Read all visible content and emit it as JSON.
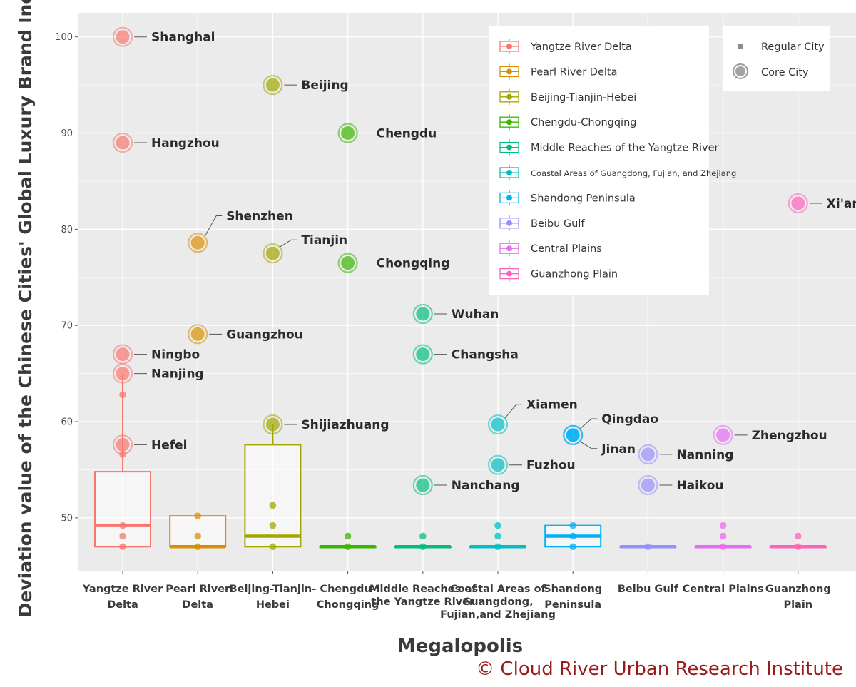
{
  "chart_data": {
    "type": "scatter",
    "chart_subtype": "box-plot with labeled city points",
    "xlabel": "Megalopolis",
    "ylabel": "Deviation value of the Chinese Cities' Global Luxury Brand Index",
    "ylim": [
      44.5,
      102.5
    ],
    "y_ticks": [
      50,
      60,
      70,
      80,
      90,
      100
    ],
    "grid": true,
    "credit": "© Cloud River Urban Research Institute",
    "categories": [
      {
        "label": [
          "Yangtze River",
          "Delta"
        ],
        "color": "#F8766D",
        "small": false
      },
      {
        "label": [
          "Pearl River",
          "Delta"
        ],
        "color": "#D89000",
        "small": false
      },
      {
        "label": [
          "Beijing-Tianjin-",
          "Hebei"
        ],
        "color": "#A3A500",
        "small": false
      },
      {
        "label": [
          "Chengdu-",
          "Chongqing"
        ],
        "color": "#39B600",
        "small": false
      },
      {
        "label": [
          "Middle Reaches of",
          "the Yangtze River"
        ],
        "color": "#00BF7D",
        "small": true
      },
      {
        "label": [
          "Coastal Areas of",
          "Guangdong,",
          "Fujian,and Zhejiang"
        ],
        "color": "#00BFC4",
        "small": true
      },
      {
        "label": [
          "Shandong",
          "Peninsula"
        ],
        "color": "#00B0F6",
        "small": false
      },
      {
        "label": [
          "Beibu Gulf"
        ],
        "color": "#9590FF",
        "small": false
      },
      {
        "label": [
          "Central Plains"
        ],
        "color": "#E76BF3",
        "small": false
      },
      {
        "label": [
          "Guanzhong",
          "Plain"
        ],
        "color": "#FF62BC",
        "small": false
      }
    ],
    "boxes": [
      {
        "q1": 47.0,
        "median": 49.2,
        "q3": 54.8,
        "whisker_low": 47.0,
        "whisker_high": 65.0
      },
      {
        "q1": 47.0,
        "median": 47.0,
        "q3": 50.2,
        "whisker_low": 47.0,
        "whisker_high": 50.2
      },
      {
        "q1": 47.0,
        "median": 48.1,
        "q3": 57.6,
        "whisker_low": 47.0,
        "whisker_high": 59.7
      },
      {
        "q1": 47.0,
        "median": 47.0,
        "q3": 47.0,
        "whisker_low": 47.0,
        "whisker_high": 47.0
      },
      {
        "q1": 47.0,
        "median": 47.0,
        "q3": 47.0,
        "whisker_low": 47.0,
        "whisker_high": 47.0
      },
      {
        "q1": 47.0,
        "median": 47.0,
        "q3": 47.0,
        "whisker_low": 47.0,
        "whisker_high": 47.0
      },
      {
        "q1": 47.0,
        "median": 48.1,
        "q3": 49.2,
        "whisker_low": 47.0,
        "whisker_high": 49.2
      },
      {
        "q1": 47.0,
        "median": 47.0,
        "q3": 47.0,
        "whisker_low": 47.0,
        "whisker_high": 47.0
      },
      {
        "q1": 47.0,
        "median": 47.0,
        "q3": 47.0,
        "whisker_low": 47.0,
        "whisker_high": 47.0
      },
      {
        "q1": 47.0,
        "median": 47.0,
        "q3": 47.0,
        "whisker_low": 47.0,
        "whisker_high": 47.0
      }
    ],
    "regular_cities": [
      {
        "group": 0,
        "y": 62.8
      },
      {
        "group": 0,
        "y": 56.6
      },
      {
        "group": 0,
        "y": 49.2
      },
      {
        "group": 0,
        "y": 48.1
      },
      {
        "group": 0,
        "y": 47.0
      },
      {
        "group": 1,
        "y": 50.2
      },
      {
        "group": 1,
        "y": 48.1
      },
      {
        "group": 1,
        "y": 47.0
      },
      {
        "group": 2,
        "y": 51.3
      },
      {
        "group": 2,
        "y": 49.2
      },
      {
        "group": 2,
        "y": 47.0
      },
      {
        "group": 3,
        "y": 48.1
      },
      {
        "group": 3,
        "y": 47.0
      },
      {
        "group": 4,
        "y": 48.1
      },
      {
        "group": 4,
        "y": 47.0
      },
      {
        "group": 5,
        "y": 49.2
      },
      {
        "group": 5,
        "y": 48.1
      },
      {
        "group": 5,
        "y": 47.0
      },
      {
        "group": 6,
        "y": 49.2
      },
      {
        "group": 6,
        "y": 48.1
      },
      {
        "group": 6,
        "y": 47.0
      },
      {
        "group": 7,
        "y": 47.0
      },
      {
        "group": 8,
        "y": 49.2
      },
      {
        "group": 8,
        "y": 48.1
      },
      {
        "group": 8,
        "y": 47.0
      },
      {
        "group": 9,
        "y": 48.1
      },
      {
        "group": 9,
        "y": 47.0
      }
    ],
    "core_cities": [
      {
        "group": 0,
        "name": "Shanghai",
        "y": 100.0,
        "label_y": 100.0
      },
      {
        "group": 0,
        "name": "Hangzhou",
        "y": 89.0,
        "label_y": 89.0
      },
      {
        "group": 0,
        "name": "Ningbo",
        "y": 67.0,
        "label_y": 67.0
      },
      {
        "group": 0,
        "name": "Nanjing",
        "y": 65.0,
        "label_y": 65.0
      },
      {
        "group": 0,
        "name": "Hefei",
        "y": 57.6,
        "label_y": 57.6
      },
      {
        "group": 1,
        "name": "Shenzhen",
        "y": 78.6,
        "label_y": 81.4
      },
      {
        "group": 1,
        "name": "Guangzhou",
        "y": 69.1,
        "label_y": 69.1
      },
      {
        "group": 2,
        "name": "Beijing",
        "y": 95.0,
        "label_y": 95.0
      },
      {
        "group": 2,
        "name": "Tianjin",
        "y": 77.5,
        "label_y": 78.9
      },
      {
        "group": 2,
        "name": "Shijiazhuang",
        "y": 59.7,
        "label_y": 59.7
      },
      {
        "group": 3,
        "name": "Chengdu",
        "y": 90.0,
        "label_y": 90.0
      },
      {
        "group": 3,
        "name": "Chongqing",
        "y": 76.5,
        "label_y": 76.5
      },
      {
        "group": 4,
        "name": "Wuhan",
        "y": 71.2,
        "label_y": 71.2
      },
      {
        "group": 4,
        "name": "Changsha",
        "y": 67.0,
        "label_y": 67.0
      },
      {
        "group": 4,
        "name": "Nanchang",
        "y": 53.4,
        "label_y": 53.4
      },
      {
        "group": 5,
        "name": "Xiamen",
        "y": 59.7,
        "label_y": 61.8
      },
      {
        "group": 5,
        "name": "Fuzhou",
        "y": 55.5,
        "label_y": 55.5
      },
      {
        "group": 6,
        "name": "Qingdao",
        "y": 58.6,
        "label_y": 60.3
      },
      {
        "group": 6,
        "name": "Jinan",
        "y": 58.6,
        "label_y": 57.2
      },
      {
        "group": 7,
        "name": "Nanning",
        "y": 56.6,
        "label_y": 56.6
      },
      {
        "group": 7,
        "name": "Haikou",
        "y": 53.4,
        "label_y": 53.4
      },
      {
        "group": 8,
        "name": "Zhengzhou",
        "y": 58.6,
        "label_y": 58.6
      },
      {
        "group": 9,
        "name": "Xi'an",
        "y": 82.7,
        "label_y": 82.7
      }
    ],
    "legend": {
      "placement": "top-right",
      "series": [
        "Yangtze River Delta",
        "Pearl River Delta",
        "Beijing-Tianjin-Hebei",
        "Chengdu-Chongqing",
        "Middle Reaches of the Yangtze River",
        "Coastal Areas of Guangdong, Fujian, and Zhejiang",
        "Shandong Peninsula",
        "Beibu Gulf",
        "Central Plains",
        "Guanzhong Plain"
      ],
      "types": [
        "Regular City",
        "Core City"
      ]
    }
  }
}
